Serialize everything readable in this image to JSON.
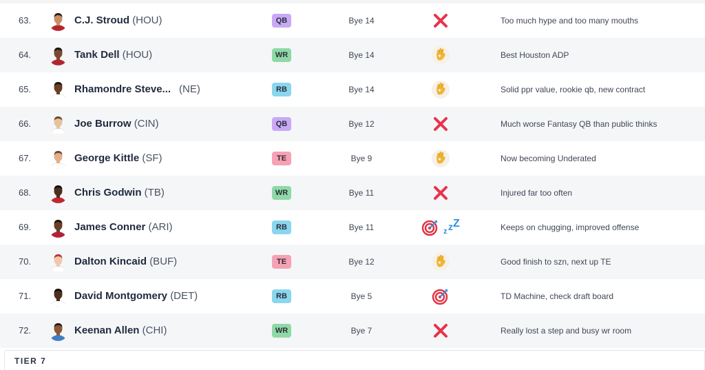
{
  "rows": [
    {
      "rank": "63.",
      "name": "C.J. Stroud",
      "team": "(HOU)",
      "pos": "QB",
      "bye": "Bye 14",
      "verdict": [
        "x-icon"
      ],
      "note": "Too much hype and too many mouths",
      "skin": "#c98e66",
      "jersey": "#b3262e",
      "hair": "#2a1a12"
    },
    {
      "rank": "64.",
      "name": "Tank Dell",
      "team": "(HOU)",
      "pos": "WR",
      "bye": "Bye 14",
      "verdict": [
        "ok-hand-icon"
      ],
      "note": "Best Houston ADP",
      "skin": "#7a4a30",
      "jersey": "#b3262e",
      "hair": "#1a120d"
    },
    {
      "rank": "65.",
      "name": "Rhamondre Steve...",
      "team": "(NE)",
      "pos": "RB",
      "bye": "Bye 14",
      "verdict": [
        "ok-hand-icon"
      ],
      "note": "Solid ppr value, rookie qb, new contract",
      "skin": "#6a3f28",
      "jersey": "#ffffff",
      "hair": "#1a120d"
    },
    {
      "rank": "66.",
      "name": "Joe Burrow",
      "team": "(CIN)",
      "pos": "QB",
      "bye": "Bye 12",
      "verdict": [
        "x-icon"
      ],
      "note": "Much worse Fantasy QB than public thinks",
      "skin": "#e8c2a0",
      "jersey": "#ffffff",
      "hair": "#6b4a2e"
    },
    {
      "rank": "67.",
      "name": "George Kittle",
      "team": "(SF)",
      "pos": "TE",
      "bye": "Bye 9",
      "verdict": [
        "ok-hand-icon"
      ],
      "note": "Now becoming Underated",
      "skin": "#e2b08a",
      "jersey": "#ffffff",
      "hair": "#6b4a2e"
    },
    {
      "rank": "68.",
      "name": "Chris Godwin",
      "team": "(TB)",
      "pos": "WR",
      "bye": "Bye 11",
      "verdict": [
        "x-icon"
      ],
      "note": "Injured far too often",
      "skin": "#4e2e1e",
      "jersey": "#c2262e",
      "hair": "#140d09"
    },
    {
      "rank": "69.",
      "name": "James Conner",
      "team": "(ARI)",
      "pos": "RB",
      "bye": "Bye 11",
      "verdict": [
        "target-icon",
        "zzz-icon"
      ],
      "note": "Keeps on chugging, improved offense",
      "skin": "#6a3f28",
      "jersey": "#b5203a",
      "hair": "#1a120d"
    },
    {
      "rank": "70.",
      "name": "Dalton Kincaid",
      "team": "(BUF)",
      "pos": "TE",
      "bye": "Bye 12",
      "verdict": [
        "ok-hand-icon"
      ],
      "note": "Good finish to szn, next up TE",
      "skin": "#efc9a8",
      "jersey": "#ffffff",
      "hair": "#c62f3a"
    },
    {
      "rank": "71.",
      "name": "David Montgomery",
      "team": "(DET)",
      "pos": "RB",
      "bye": "Bye 5",
      "verdict": [
        "target-icon"
      ],
      "note": "TD Machine, check draft board",
      "skin": "#4e2e1e",
      "jersey": "#ffffff",
      "hair": "#140d09"
    },
    {
      "rank": "72.",
      "name": "Keenan Allen",
      "team": "(CHI)",
      "pos": "WR",
      "bye": "Bye 7",
      "verdict": [
        "x-icon"
      ],
      "note": "Really lost a step and busy wr room",
      "skin": "#8a5a3c",
      "jersey": "#3d7fc4",
      "hair": "#2a1a12"
    }
  ],
  "tier": {
    "label": "TIER 7"
  },
  "colors": {
    "QB": "#c9a9f5",
    "WR": "#8fd9a6",
    "RB": "#8ad6ee",
    "TE": "#f7a1b4",
    "x": "#e8334b",
    "ok": "#f5b92e",
    "target": "#e03445",
    "zzz": "#2f8fe0"
  }
}
